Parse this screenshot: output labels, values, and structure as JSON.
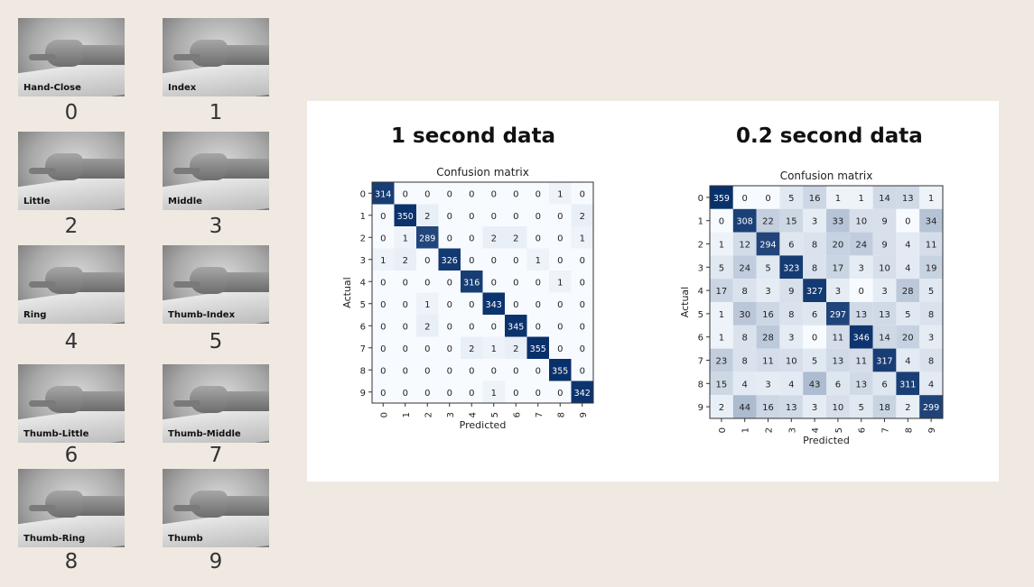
{
  "gestures": [
    {
      "label": "Hand-Close",
      "number": "0"
    },
    {
      "label": "Index",
      "number": "1"
    },
    {
      "label": "Little",
      "number": "2"
    },
    {
      "label": "Middle",
      "number": "3"
    },
    {
      "label": "Ring",
      "number": "4"
    },
    {
      "label": "Thumb-Index",
      "number": "5"
    },
    {
      "label": "Thumb-Little",
      "number": "6"
    },
    {
      "label": "Thumb-Middle",
      "number": "7"
    },
    {
      "label": "Thumb-Ring",
      "number": "8"
    },
    {
      "label": "Thumb",
      "number": "9"
    }
  ],
  "panel": {
    "left_title": "1 second data",
    "right_title": "0.2 second data"
  },
  "chart_data": [
    {
      "type": "heatmap",
      "title": "Confusion matrix",
      "xlabel": "Predicted",
      "ylabel": "Actual",
      "x_categories": [
        "0",
        "1",
        "2",
        "3",
        "4",
        "5",
        "6",
        "7",
        "8",
        "9"
      ],
      "y_categories": [
        "0",
        "1",
        "2",
        "3",
        "4",
        "5",
        "6",
        "7",
        "8",
        "9"
      ],
      "colormap": [
        "#f7fbff",
        "#08306b"
      ],
      "matrix": [
        [
          314,
          0,
          0,
          0,
          0,
          0,
          0,
          0,
          1,
          0
        ],
        [
          0,
          350,
          2,
          0,
          0,
          0,
          0,
          0,
          0,
          2
        ],
        [
          0,
          1,
          289,
          0,
          0,
          2,
          2,
          0,
          0,
          1
        ],
        [
          1,
          2,
          0,
          326,
          0,
          0,
          0,
          1,
          0,
          0
        ],
        [
          0,
          0,
          0,
          0,
          316,
          0,
          0,
          0,
          1,
          0
        ],
        [
          0,
          0,
          1,
          0,
          0,
          343,
          0,
          0,
          0,
          0
        ],
        [
          0,
          0,
          2,
          0,
          0,
          0,
          345,
          0,
          0,
          0
        ],
        [
          0,
          0,
          0,
          0,
          2,
          1,
          2,
          355,
          0,
          0
        ],
        [
          0,
          0,
          0,
          0,
          0,
          0,
          0,
          0,
          355,
          0
        ],
        [
          0,
          0,
          0,
          0,
          0,
          1,
          0,
          0,
          0,
          342
        ]
      ]
    },
    {
      "type": "heatmap",
      "title": "Confusion matrix",
      "xlabel": "Predicted",
      "ylabel": "Actual",
      "x_categories": [
        "0",
        "1",
        "2",
        "3",
        "4",
        "5",
        "6",
        "7",
        "8",
        "9"
      ],
      "y_categories": [
        "0",
        "1",
        "2",
        "3",
        "4",
        "5",
        "6",
        "7",
        "8",
        "9"
      ],
      "colormap": [
        "#f7fbff",
        "#08306b"
      ],
      "matrix": [
        [
          359,
          0,
          0,
          5,
          16,
          1,
          1,
          14,
          13,
          1
        ],
        [
          0,
          308,
          22,
          15,
          3,
          33,
          10,
          9,
          0,
          34
        ],
        [
          1,
          12,
          294,
          6,
          8,
          20,
          24,
          9,
          4,
          11
        ],
        [
          5,
          24,
          5,
          323,
          8,
          17,
          3,
          10,
          4,
          19
        ],
        [
          17,
          8,
          3,
          9,
          327,
          3,
          0,
          3,
          28,
          5
        ],
        [
          1,
          30,
          16,
          8,
          6,
          297,
          13,
          13,
          5,
          8
        ],
        [
          1,
          8,
          28,
          3,
          0,
          11,
          346,
          14,
          20,
          3
        ],
        [
          23,
          8,
          11,
          10,
          5,
          13,
          11,
          317,
          4,
          8
        ],
        [
          15,
          4,
          3,
          4,
          43,
          6,
          13,
          6,
          311,
          4
        ],
        [
          2,
          44,
          16,
          13,
          3,
          10,
          5,
          18,
          2,
          299
        ]
      ]
    }
  ]
}
